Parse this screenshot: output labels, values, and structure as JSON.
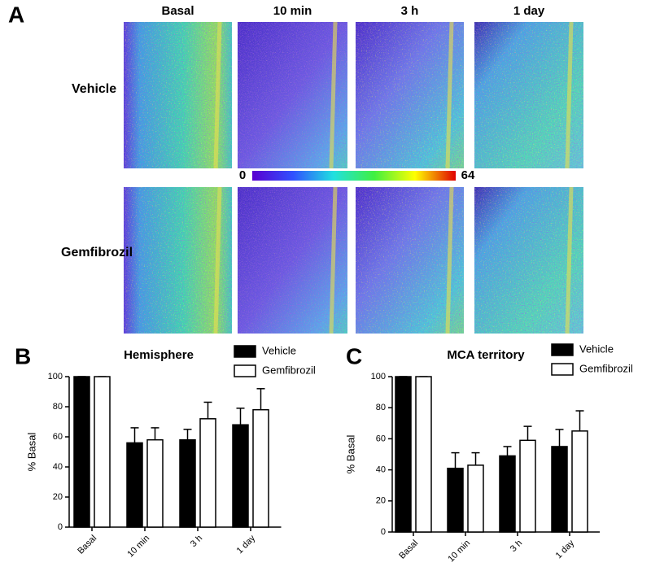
{
  "panel_a": {
    "label": "A",
    "columns": [
      "Basal",
      "10 min",
      "3 h",
      "1 day"
    ],
    "rows": [
      "Vehicle",
      "Gemfibrozil"
    ],
    "colorbar": {
      "min": "0",
      "max": "64"
    }
  },
  "chart_data": [
    {
      "type": "bar",
      "panel": "B",
      "title": "Hemisphere",
      "y_label": "% Basal",
      "categories": [
        "Basal",
        "10 min",
        "3 h",
        "1 day"
      ],
      "series": [
        {
          "name": "Vehicle",
          "color": "#000000",
          "values": [
            100,
            56,
            58,
            68
          ],
          "errors": [
            0,
            10,
            7,
            11
          ]
        },
        {
          "name": "Gemfibrozil",
          "color": "#ffffff",
          "values": [
            100,
            58,
            72,
            78
          ],
          "errors": [
            0,
            8,
            11,
            14
          ]
        }
      ],
      "ylim": [
        0,
        100
      ],
      "yticks": [
        0,
        20,
        40,
        60,
        80,
        100
      ]
    },
    {
      "type": "bar",
      "panel": "C",
      "title": "MCA territory",
      "y_label": "% Basal",
      "categories": [
        "Basal",
        "10 min",
        "3 h",
        "1 day"
      ],
      "series": [
        {
          "name": "Vehicle",
          "color": "#000000",
          "values": [
            100,
            41,
            49,
            55
          ],
          "errors": [
            0,
            10,
            6,
            11
          ]
        },
        {
          "name": "Gemfibrozil",
          "color": "#ffffff",
          "values": [
            100,
            43,
            59,
            65
          ],
          "errors": [
            0,
            8,
            9,
            13
          ]
        }
      ],
      "ylim": [
        0,
        100
      ],
      "yticks": [
        0,
        20,
        40,
        60,
        80,
        100
      ]
    }
  ]
}
